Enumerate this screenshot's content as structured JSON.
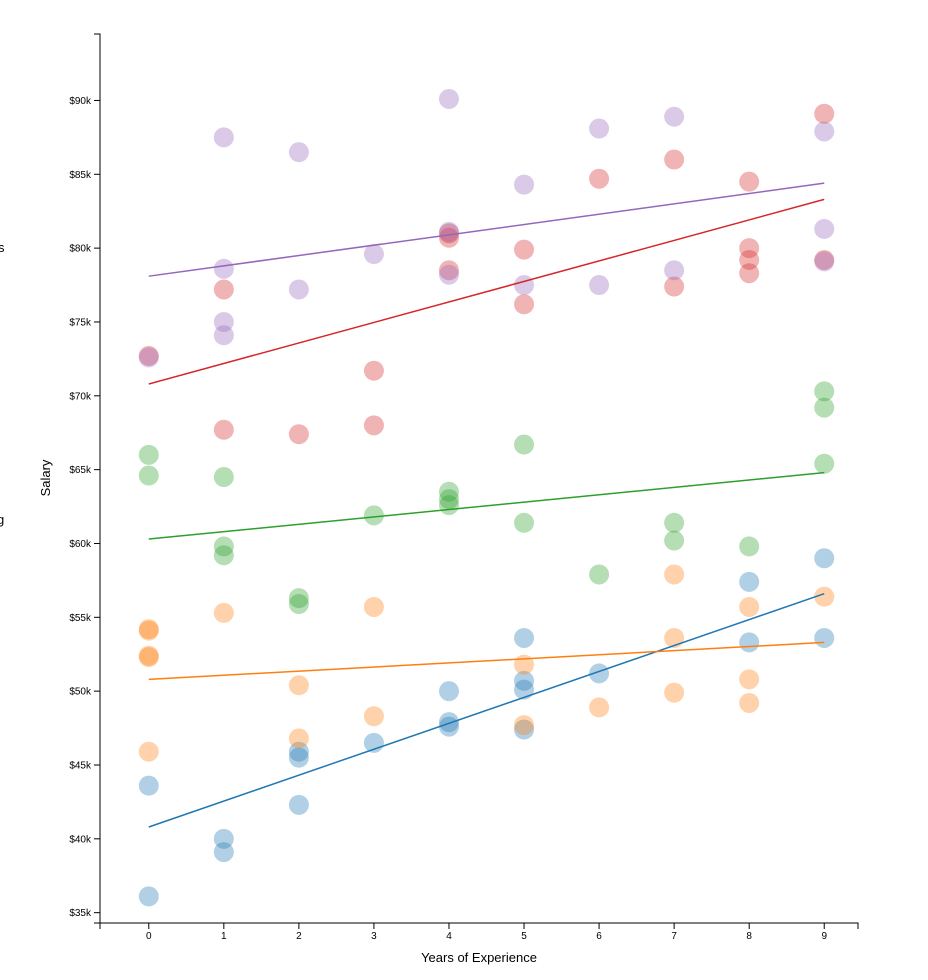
{
  "chart_data": {
    "type": "scatter",
    "title": "",
    "xlabel": "Years of Experience",
    "ylabel": "Salary",
    "xlim": [
      -0.65,
      9.45
    ],
    "ylim": [
      34300,
      94500
    ],
    "x_ticks": [
      0,
      1,
      2,
      3,
      4,
      5,
      6,
      7,
      8,
      9
    ],
    "x_tick_labels": [
      "0",
      "1",
      "2",
      "3",
      "4",
      "5",
      "6",
      "7",
      "8",
      "9"
    ],
    "y_ticks": [
      35000,
      40000,
      45000,
      50000,
      55000,
      60000,
      65000,
      70000,
      75000,
      80000,
      85000,
      90000
    ],
    "y_tick_labels": [
      "$35k",
      "$40k",
      "$45k",
      "$50k",
      "$55k",
      "$60k",
      "$65k",
      "$70k",
      "$75k",
      "$80k",
      "$85k",
      "$90k"
    ],
    "grid": false,
    "legend": "clipped at left edge",
    "clipped_legend_fragments": [
      "s",
      "g"
    ],
    "point_opacity": 0.35,
    "series": [
      {
        "color": "#1f77b4",
        "points": [
          [
            0,
            43600
          ],
          [
            0,
            36100
          ],
          [
            1,
            40000
          ],
          [
            1,
            39100
          ],
          [
            2,
            45900
          ],
          [
            2,
            45500
          ],
          [
            2,
            42300
          ],
          [
            3,
            46500
          ],
          [
            4,
            50000
          ],
          [
            4,
            47900
          ],
          [
            4,
            47600
          ],
          [
            5,
            53600
          ],
          [
            5,
            50700
          ],
          [
            5,
            50100
          ],
          [
            5,
            47400
          ],
          [
            6,
            51200
          ],
          [
            8,
            57400
          ],
          [
            8,
            53300
          ],
          [
            9,
            59000
          ],
          [
            9,
            53600
          ]
        ],
        "trend": [
          [
            0,
            40800
          ],
          [
            9,
            56600
          ]
        ]
      },
      {
        "color": "#ff7f0e",
        "points": [
          [
            0,
            54200
          ],
          [
            0,
            54100
          ],
          [
            0,
            52400
          ],
          [
            0,
            52300
          ],
          [
            0,
            45900
          ],
          [
            1,
            55300
          ],
          [
            2,
            50400
          ],
          [
            2,
            46800
          ],
          [
            3,
            55700
          ],
          [
            3,
            48300
          ],
          [
            5,
            51800
          ],
          [
            5,
            47700
          ],
          [
            6,
            48900
          ],
          [
            7,
            57900
          ],
          [
            7,
            53600
          ],
          [
            7,
            49900
          ],
          [
            8,
            55700
          ],
          [
            8,
            50800
          ],
          [
            8,
            49200
          ],
          [
            9,
            56400
          ]
        ],
        "trend": [
          [
            0,
            50800
          ],
          [
            9,
            53300
          ]
        ]
      },
      {
        "color": "#2ca02c",
        "points": [
          [
            0,
            66000
          ],
          [
            0,
            64600
          ],
          [
            1,
            64500
          ],
          [
            1,
            59800
          ],
          [
            1,
            59200
          ],
          [
            2,
            56300
          ],
          [
            2,
            55900
          ],
          [
            3,
            61900
          ],
          [
            4,
            63500
          ],
          [
            4,
            63000
          ],
          [
            4,
            62600
          ],
          [
            5,
            66700
          ],
          [
            5,
            61400
          ],
          [
            6,
            57900
          ],
          [
            7,
            61400
          ],
          [
            7,
            60200
          ],
          [
            8,
            59800
          ],
          [
            9,
            70300
          ],
          [
            9,
            69200
          ],
          [
            9,
            65400
          ]
        ],
        "trend": [
          [
            0,
            60300
          ],
          [
            9,
            64800
          ]
        ]
      },
      {
        "color": "#d62728",
        "points": [
          [
            0,
            72700
          ],
          [
            1,
            77200
          ],
          [
            1,
            67700
          ],
          [
            2,
            67400
          ],
          [
            3,
            71700
          ],
          [
            3,
            68000
          ],
          [
            4,
            81000
          ],
          [
            4,
            80700
          ],
          [
            4,
            78500
          ],
          [
            5,
            79900
          ],
          [
            5,
            76200
          ],
          [
            6,
            84700
          ],
          [
            7,
            86000
          ],
          [
            7,
            77400
          ],
          [
            8,
            84500
          ],
          [
            8,
            80000
          ],
          [
            8,
            79200
          ],
          [
            8,
            78300
          ],
          [
            9,
            89100
          ],
          [
            9,
            79200
          ]
        ],
        "trend": [
          [
            0,
            70800
          ],
          [
            9,
            83300
          ]
        ]
      },
      {
        "color": "#9467bd",
        "points": [
          [
            0,
            72600
          ],
          [
            1,
            87500
          ],
          [
            1,
            78600
          ],
          [
            1,
            75000
          ],
          [
            1,
            74100
          ],
          [
            2,
            86500
          ],
          [
            2,
            77200
          ],
          [
            3,
            79600
          ],
          [
            4,
            90100
          ],
          [
            4,
            81100
          ],
          [
            4,
            78200
          ],
          [
            5,
            84300
          ],
          [
            5,
            77500
          ],
          [
            6,
            88100
          ],
          [
            6,
            77500
          ],
          [
            7,
            88900
          ],
          [
            7,
            78500
          ],
          [
            9,
            87900
          ],
          [
            9,
            81300
          ],
          [
            9,
            79100
          ]
        ],
        "trend": [
          [
            0,
            78100
          ],
          [
            9,
            84400
          ]
        ]
      }
    ]
  }
}
